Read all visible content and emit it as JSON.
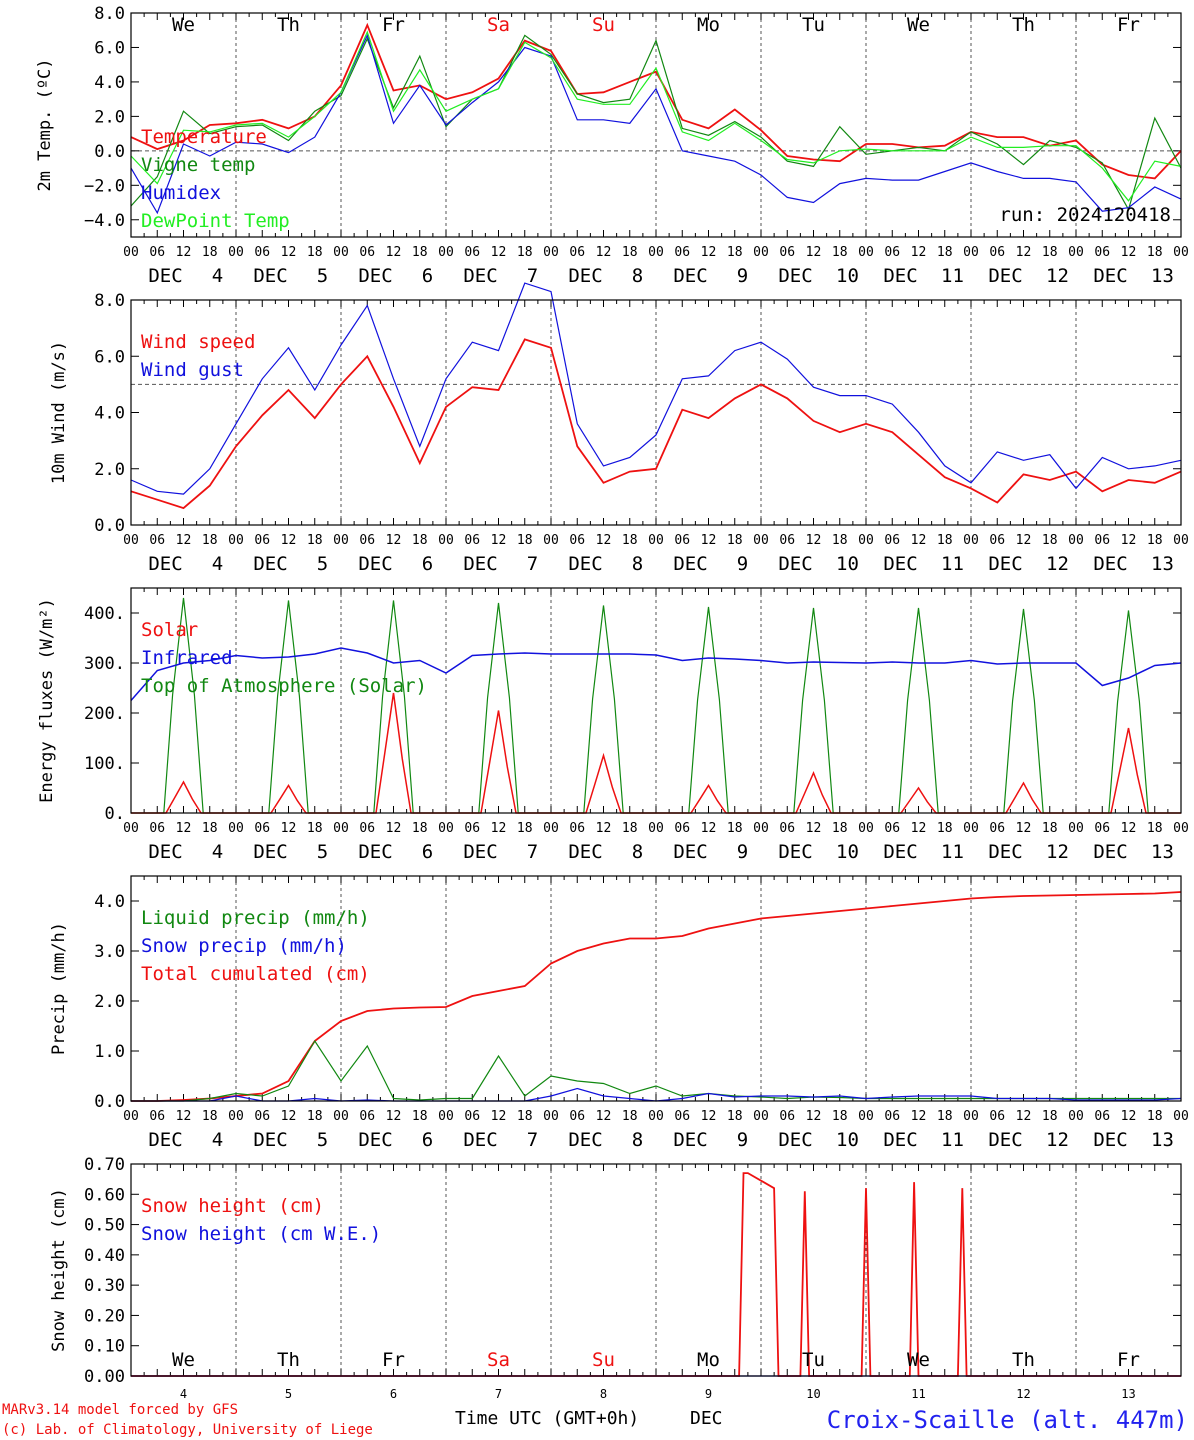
{
  "run_label": "run: 2024120418",
  "days": [
    {
      "abbr": "We",
      "date": "4",
      "weekend": false
    },
    {
      "abbr": "Th",
      "date": "5",
      "weekend": false
    },
    {
      "abbr": "Fr",
      "date": "6",
      "weekend": false
    },
    {
      "abbr": "Sa",
      "date": "7",
      "weekend": true
    },
    {
      "abbr": "Su",
      "date": "8",
      "weekend": true
    },
    {
      "abbr": "Mo",
      "date": "9",
      "weekend": false
    },
    {
      "abbr": "Tu",
      "date": "10",
      "weekend": false
    },
    {
      "abbr": "We",
      "date": "11",
      "weekend": false
    },
    {
      "abbr": "Th",
      "date": "12",
      "weekend": false
    },
    {
      "abbr": "Fr",
      "date": "13",
      "weekend": false
    }
  ],
  "month": "DEC",
  "hour_ticks": [
    "00",
    "06",
    "12",
    "18"
  ],
  "footer": {
    "model": "MARv3.14 model forced by GFS",
    "copyright": "(c) Lab. of Climatology, University of Liege",
    "xlabel": "Time UTC (GMT+0h)",
    "xunit": "DEC",
    "station": "Croix-Scaille (alt. 447m)"
  },
  "colors": {
    "red": "#ee1111",
    "green": "#118811",
    "blue": "#1111dd",
    "lime": "#22ee22",
    "grey": "#555555"
  },
  "chart_data": [
    {
      "type": "line",
      "ylabel": "2m Temp. (ºC)",
      "ylim": [
        -5,
        8
      ],
      "yticks": [
        8,
        6,
        4,
        2,
        0,
        -2,
        -4
      ],
      "ytick_labels": [
        "8.0",
        "6.0",
        "4.0",
        "2.0",
        "0.0",
        "−2.0",
        "−4.0"
      ],
      "refline": 0,
      "legend": [
        {
          "label": "Temperature",
          "color": "red"
        },
        {
          "label": "Vigne temp",
          "color": "green"
        },
        {
          "label": "Humidex",
          "color": "blue"
        },
        {
          "label": "DewPoint Temp",
          "color": "lime"
        }
      ],
      "x_hours": [
        0,
        6,
        12,
        18,
        24,
        30,
        36,
        42,
        48,
        54,
        60,
        66,
        72,
        78,
        84,
        90,
        96,
        102,
        108,
        114,
        120,
        126,
        132,
        138,
        144,
        150,
        156,
        162,
        168,
        174,
        180,
        186,
        192,
        198,
        204,
        210,
        216,
        222,
        228,
        234,
        240
      ],
      "series": [
        {
          "name": "Temperature",
          "color": "red",
          "values": [
            0.8,
            0.1,
            0.6,
            1.5,
            1.6,
            1.8,
            1.3,
            2.0,
            3.8,
            7.3,
            3.5,
            3.8,
            3.0,
            3.4,
            4.2,
            6.4,
            5.8,
            3.3,
            3.4,
            4.0,
            4.6,
            1.8,
            1.3,
            2.4,
            1.2,
            -0.3,
            -0.5,
            -0.6,
            0.4,
            0.4,
            0.2,
            0.3,
            1.1,
            0.8,
            0.8,
            0.3,
            0.6,
            -0.8,
            -1.4,
            -1.6,
            0.0
          ]
        },
        {
          "name": "Vigne temp",
          "color": "green",
          "values": [
            -3.2,
            -1.5,
            2.3,
            1.0,
            1.4,
            1.5,
            0.6,
            2.3,
            3.2,
            6.5,
            2.5,
            5.5,
            1.4,
            3.0,
            3.6,
            6.7,
            5.6,
            3.3,
            2.8,
            3.0,
            6.4,
            1.3,
            0.9,
            1.7,
            0.8,
            -0.6,
            -0.9,
            1.4,
            -0.2,
            0.0,
            0.2,
            0.0,
            1.1,
            0.4,
            -0.8,
            0.6,
            0.2,
            -0.7,
            -3.4,
            1.9,
            -1.0
          ]
        },
        {
          "name": "Humidex",
          "color": "blue",
          "values": [
            -1.0,
            -3.6,
            0.4,
            -0.3,
            0.5,
            0.4,
            -0.1,
            0.8,
            3.4,
            6.7,
            1.6,
            3.8,
            1.5,
            2.8,
            4.0,
            6.0,
            5.5,
            1.8,
            1.8,
            1.6,
            3.6,
            0.0,
            -0.3,
            -0.6,
            -1.4,
            -2.7,
            -3.0,
            -1.9,
            -1.6,
            -1.7,
            -1.7,
            -1.2,
            -0.7,
            -1.2,
            -1.6,
            -1.6,
            -1.8,
            -3.5,
            -3.3,
            -2.1,
            -2.8
          ]
        },
        {
          "name": "DewPoint Temp",
          "color": "lime",
          "values": [
            -0.3,
            -1.9,
            1.2,
            1.1,
            1.5,
            1.6,
            0.8,
            2.0,
            3.4,
            6.9,
            2.3,
            4.7,
            2.3,
            3.0,
            3.6,
            6.3,
            5.4,
            3.0,
            2.7,
            2.7,
            4.8,
            1.1,
            0.6,
            1.6,
            0.6,
            -0.5,
            -0.7,
            0.0,
            0.1,
            0.0,
            0.0,
            0.0,
            0.8,
            0.2,
            0.2,
            0.3,
            0.3,
            -1.0,
            -2.9,
            -0.6,
            -0.9
          ]
        }
      ]
    },
    {
      "type": "line",
      "ylabel": "10m Wind (m/s)",
      "ylim": [
        0,
        8
      ],
      "yticks": [
        8,
        6,
        4,
        2,
        0
      ],
      "ytick_labels": [
        "8.0",
        "6.0",
        "4.0",
        "2.0",
        "0.0"
      ],
      "refline": 5,
      "legend": [
        {
          "label": "Wind speed",
          "color": "red"
        },
        {
          "label": "Wind gust",
          "color": "blue"
        }
      ],
      "x_hours": [
        0,
        6,
        12,
        18,
        24,
        30,
        36,
        42,
        48,
        54,
        60,
        66,
        72,
        78,
        84,
        90,
        96,
        102,
        108,
        114,
        120,
        126,
        132,
        138,
        144,
        150,
        156,
        162,
        168,
        174,
        180,
        186,
        192,
        198,
        204,
        210,
        216,
        222,
        228,
        234,
        240
      ],
      "series": [
        {
          "name": "Wind speed",
          "color": "red",
          "values": [
            1.2,
            0.9,
            0.6,
            1.4,
            2.8,
            3.9,
            4.8,
            3.8,
            5.0,
            6.0,
            4.2,
            2.2,
            4.2,
            4.9,
            4.8,
            6.6,
            6.3,
            2.8,
            1.5,
            1.9,
            2.0,
            4.1,
            3.8,
            4.5,
            5.0,
            4.5,
            3.7,
            3.3,
            3.6,
            3.3,
            2.5,
            1.7,
            1.3,
            0.8,
            1.8,
            1.6,
            1.9,
            1.2,
            1.6,
            1.5,
            1.9
          ]
        },
        {
          "name": "Wind gust",
          "color": "blue",
          "values": [
            1.6,
            1.2,
            1.1,
            2.0,
            3.6,
            5.2,
            6.3,
            4.8,
            6.4,
            7.8,
            5.2,
            2.8,
            5.2,
            6.5,
            6.2,
            8.6,
            8.3,
            3.6,
            2.1,
            2.4,
            3.2,
            5.2,
            5.3,
            6.2,
            6.5,
            5.9,
            4.9,
            4.6,
            4.6,
            4.3,
            3.3,
            2.1,
            1.5,
            2.6,
            2.3,
            2.5,
            1.3,
            2.4,
            2.0,
            2.1,
            2.3
          ]
        }
      ]
    },
    {
      "type": "line",
      "ylabel": "Energy fluxes (W/m²)",
      "ylim": [
        0,
        450
      ],
      "yticks": [
        400,
        300,
        200,
        100,
        0
      ],
      "ytick_labels": [
        "400.",
        "300.",
        "200.",
        "100.",
        "0."
      ],
      "legend": [
        {
          "label": "Solar",
          "color": "red"
        },
        {
          "label": "Infrared",
          "color": "blue"
        },
        {
          "label": "Top of Atmosphere (Solar)",
          "color": "green"
        }
      ],
      "infrared": {
        "x_hours": [
          0,
          6,
          12,
          18,
          24,
          30,
          36,
          42,
          48,
          54,
          60,
          66,
          72,
          78,
          84,
          90,
          96,
          102,
          108,
          114,
          120,
          126,
          132,
          138,
          144,
          150,
          156,
          162,
          168,
          174,
          180,
          186,
          192,
          198,
          204,
          210,
          216,
          222,
          228,
          234,
          240
        ],
        "values": [
          225,
          285,
          300,
          305,
          315,
          310,
          312,
          318,
          330,
          320,
          300,
          305,
          280,
          315,
          318,
          320,
          318,
          318,
          318,
          318,
          316,
          305,
          310,
          308,
          305,
          300,
          302,
          301,
          300,
          302,
          300,
          300,
          305,
          298,
          300,
          300,
          300,
          255,
          270,
          295,
          300
        ]
      },
      "solar_peaks": [
        62,
        55,
        240,
        205,
        115,
        55,
        80,
        50,
        60,
        170
      ],
      "toa_peaks": [
        430,
        425,
        425,
        420,
        415,
        412,
        410,
        410,
        408,
        405
      ]
    },
    {
      "type": "line",
      "ylabel": "Precip (mm/h)",
      "ylim": [
        0,
        4.5
      ],
      "yticks": [
        4,
        3,
        2,
        1,
        0
      ],
      "ytick_labels": [
        "4.0",
        "3.0",
        "2.0",
        "1.0",
        "0.0"
      ],
      "legend": [
        {
          "label": "Liquid precip (mm/h)",
          "color": "green"
        },
        {
          "label": "Snow precip (mm/h)",
          "color": "blue"
        },
        {
          "label": "Total cumulated (cm)",
          "color": "red"
        }
      ],
      "x_hours": [
        0,
        6,
        12,
        18,
        24,
        30,
        36,
        42,
        48,
        54,
        60,
        66,
        72,
        78,
        84,
        90,
        96,
        102,
        108,
        114,
        120,
        126,
        132,
        138,
        144,
        150,
        156,
        162,
        168,
        174,
        180,
        186,
        192,
        198,
        204,
        210,
        216,
        222,
        228,
        234,
        240
      ],
      "series": [
        {
          "name": "Total cumulated (cm)",
          "color": "red",
          "values": [
            0,
            0,
            0.02,
            0.05,
            0.1,
            0.15,
            0.4,
            1.2,
            1.6,
            1.8,
            1.85,
            1.87,
            1.88,
            2.1,
            2.2,
            2.3,
            2.75,
            3.0,
            3.15,
            3.25,
            3.25,
            3.3,
            3.45,
            3.55,
            3.65,
            3.7,
            3.75,
            3.8,
            3.85,
            3.9,
            3.95,
            4.0,
            4.05,
            4.08,
            4.1,
            4.11,
            4.12,
            4.13,
            4.14,
            4.15,
            4.18
          ]
        },
        {
          "name": "Liquid precip (mm/h)",
          "color": "green",
          "values": [
            0,
            0,
            0,
            0.05,
            0.15,
            0.1,
            0.3,
            1.2,
            0.4,
            1.1,
            0.05,
            0.02,
            0.05,
            0.05,
            0.9,
            0.1,
            0.5,
            0.4,
            0.35,
            0.15,
            0.3,
            0.1,
            0.15,
            0.1,
            0.08,
            0.05,
            0.08,
            0.07,
            0.05,
            0.05,
            0.05,
            0.05,
            0.05,
            0.05,
            0.05,
            0.05,
            0.05,
            0.05,
            0.05,
            0.05,
            0.05
          ]
        },
        {
          "name": "Snow precip (mm/h)",
          "color": "blue",
          "values": [
            0,
            0,
            0,
            0,
            0.1,
            0,
            0,
            0.05,
            0,
            0.02,
            0,
            0,
            0,
            0,
            0,
            0,
            0.1,
            0.25,
            0.1,
            0.05,
            0,
            0.05,
            0.15,
            0.08,
            0.1,
            0.1,
            0.08,
            0.1,
            0.05,
            0.08,
            0.1,
            0.1,
            0.1,
            0.05,
            0.05,
            0.05,
            0.02,
            0.02,
            0.02,
            0.02,
            0.05
          ]
        }
      ]
    },
    {
      "type": "line",
      "ylabel": "Snow height (cm)",
      "ylim": [
        0,
        0.7
      ],
      "yticks": [
        0.7,
        0.6,
        0.5,
        0.4,
        0.3,
        0.2,
        0.1,
        0
      ],
      "ytick_labels": [
        "0.70",
        "0.60",
        "0.50",
        "0.40",
        "0.30",
        "0.20",
        "0.10",
        "0.00"
      ],
      "legend": [
        {
          "label": "Snow height (cm)",
          "color": "red"
        },
        {
          "label": "Snow height (cm W.E.)",
          "color": "blue"
        }
      ],
      "x_hours": [
        0,
        120,
        139,
        140,
        141,
        147,
        148,
        149,
        150,
        153,
        154,
        155,
        167,
        168,
        169,
        178,
        179,
        180,
        189,
        190,
        191,
        205,
        206,
        207,
        208,
        240
      ],
      "series": [
        {
          "name": "Snow height (cm)",
          "color": "red",
          "values": [
            0,
            0,
            0,
            0.67,
            0.67,
            0.62,
            0,
            0,
            0,
            0,
            0.61,
            0,
            0,
            0.62,
            0,
            0,
            0.64,
            0,
            0,
            0.62,
            0,
            0,
            0,
            0,
            0,
            0
          ]
        },
        {
          "name": "Snow height (cm W.E.)",
          "color": "blue",
          "values": [
            0,
            0,
            0,
            0,
            0,
            0,
            0,
            0,
            0,
            0,
            0,
            0,
            0,
            0,
            0,
            0,
            0,
            0,
            0,
            0,
            0,
            0,
            0,
            0,
            0,
            0
          ]
        }
      ]
    }
  ]
}
